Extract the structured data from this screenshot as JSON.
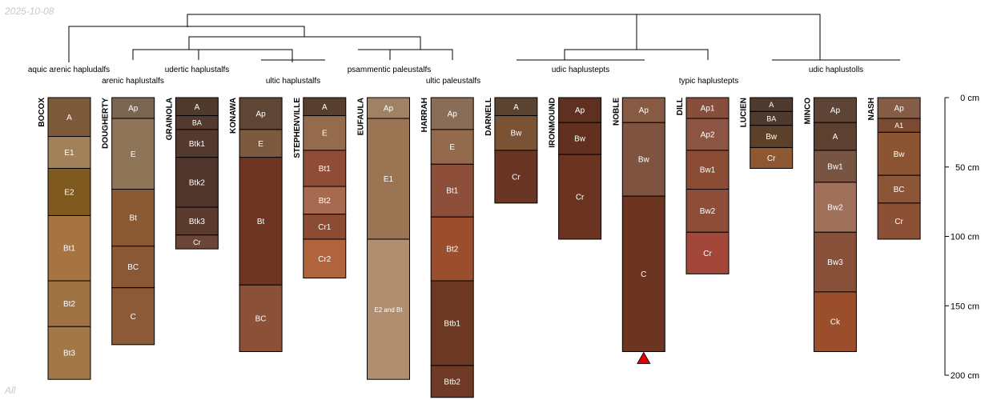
{
  "header": {
    "date": "2025-10-08"
  },
  "footer": {
    "label": "All"
  },
  "scale": {
    "unit": "cm",
    "max_depth": 200,
    "tick_labels": [
      "0 cm",
      "50 cm",
      "100 cm",
      "150 cm",
      "200 cm"
    ]
  },
  "taxa": [
    {
      "key": "t1",
      "label": "aquic arenic hapludalfs"
    },
    {
      "key": "t2",
      "label": "arenic haplustalfs"
    },
    {
      "key": "t3",
      "label": "udertic haplustalfs"
    },
    {
      "key": "t4",
      "label": "ultic haplustalfs"
    },
    {
      "key": "t5",
      "label": "psammentic paleustalfs"
    },
    {
      "key": "t6",
      "label": "ultic paleustalfs"
    },
    {
      "key": "t7",
      "label": "udic haplustepts"
    },
    {
      "key": "t8",
      "label": "typic haplustepts"
    },
    {
      "key": "t9",
      "label": "udic haplustolls"
    }
  ],
  "profiles": [
    {
      "name": "BOCOX",
      "horizons": [
        {
          "name": "A",
          "top": 0,
          "bottom": 28,
          "color": "#7d5a3a"
        },
        {
          "name": "E1",
          "top": 28,
          "bottom": 51,
          "color": "#a2805a"
        },
        {
          "name": "E2",
          "top": 51,
          "bottom": 85,
          "color": "#7f5a1e"
        },
        {
          "name": "Bt1",
          "top": 85,
          "bottom": 132,
          "color": "#a57441"
        },
        {
          "name": "Bt2",
          "top": 132,
          "bottom": 165,
          "color": "#a07345"
        },
        {
          "name": "Bt3",
          "top": 165,
          "bottom": 203,
          "color": "#a37848"
        }
      ]
    },
    {
      "name": "DOUGHERTY",
      "horizons": [
        {
          "name": "Ap",
          "top": 0,
          "bottom": 15,
          "color": "#7a6553"
        },
        {
          "name": "E",
          "top": 15,
          "bottom": 66,
          "color": "#8e7558"
        },
        {
          "name": "Bt",
          "top": 66,
          "bottom": 107,
          "color": "#8b5a32"
        },
        {
          "name": "BC",
          "top": 107,
          "bottom": 137,
          "color": "#8a5835"
        },
        {
          "name": "C",
          "top": 137,
          "bottom": 178,
          "color": "#8c5a36"
        }
      ]
    },
    {
      "name": "GRAINOLA",
      "horizons": [
        {
          "name": "A",
          "top": 0,
          "bottom": 13,
          "color": "#4f3a2e"
        },
        {
          "name": "BA",
          "top": 13,
          "bottom": 23,
          "color": "#54392f"
        },
        {
          "name": "Btk1",
          "top": 23,
          "bottom": 43,
          "color": "#54392f"
        },
        {
          "name": "Btk2",
          "top": 43,
          "bottom": 79,
          "color": "#50352b"
        },
        {
          "name": "Btk3",
          "top": 79,
          "bottom": 99,
          "color": "#5a3b2d"
        },
        {
          "name": "Cr",
          "top": 99,
          "bottom": 109,
          "color": "#6b4636"
        }
      ]
    },
    {
      "name": "KONAWA",
      "horizons": [
        {
          "name": "Ap",
          "top": 0,
          "bottom": 23,
          "color": "#5e4536"
        },
        {
          "name": "E",
          "top": 23,
          "bottom": 43,
          "color": "#7b5a40"
        },
        {
          "name": "Bt",
          "top": 43,
          "bottom": 135,
          "color": "#6e3522"
        },
        {
          "name": "BC",
          "top": 135,
          "bottom": 183,
          "color": "#8a5138"
        }
      ]
    },
    {
      "name": "STEPHENVILLE",
      "horizons": [
        {
          "name": "A",
          "top": 0,
          "bottom": 13,
          "color": "#583e2e"
        },
        {
          "name": "E",
          "top": 13,
          "bottom": 38,
          "color": "#946c4d"
        },
        {
          "name": "Bt1",
          "top": 38,
          "bottom": 64,
          "color": "#8f4c36"
        },
        {
          "name": "Bt2",
          "top": 64,
          "bottom": 84,
          "color": "#a56a4f"
        },
        {
          "name": "Cr1",
          "top": 84,
          "bottom": 102,
          "color": "#8c4b33"
        },
        {
          "name": "Cr2",
          "top": 102,
          "bottom": 130,
          "color": "#b0643d"
        }
      ]
    },
    {
      "name": "EUFAULA",
      "horizons": [
        {
          "name": "Ap",
          "top": 0,
          "bottom": 15,
          "color": "#9f8164"
        },
        {
          "name": "E1",
          "top": 15,
          "bottom": 102,
          "color": "#9b7453"
        },
        {
          "name": "E2 and Bt",
          "top": 102,
          "bottom": 203,
          "color": "#b08e70"
        }
      ]
    },
    {
      "name": "HARRAH",
      "horizons": [
        {
          "name": "Ap",
          "top": 0,
          "bottom": 23,
          "color": "#8a6d57"
        },
        {
          "name": "E",
          "top": 23,
          "bottom": 48,
          "color": "#946a4c"
        },
        {
          "name": "Bt1",
          "top": 48,
          "bottom": 86,
          "color": "#8e4f3a"
        },
        {
          "name": "Bt2",
          "top": 86,
          "bottom": 132,
          "color": "#9a4e2e"
        },
        {
          "name": "Btb1",
          "top": 132,
          "bottom": 193,
          "color": "#6d3822"
        },
        {
          "name": "Btb2",
          "top": 193,
          "bottom": 216,
          "color": "#6e3a25"
        }
      ]
    },
    {
      "name": "DARNELL",
      "horizons": [
        {
          "name": "A",
          "top": 0,
          "bottom": 13,
          "color": "#5a4330"
        },
        {
          "name": "Bw",
          "top": 13,
          "bottom": 38,
          "color": "#7a5234"
        },
        {
          "name": "Cr",
          "top": 38,
          "bottom": 76,
          "color": "#6b3523"
        }
      ]
    },
    {
      "name": "IRONMOUND",
      "horizons": [
        {
          "name": "Ap",
          "top": 0,
          "bottom": 18,
          "color": "#5e3022"
        },
        {
          "name": "Bw",
          "top": 18,
          "bottom": 41,
          "color": "#62301f"
        },
        {
          "name": "Cr",
          "top": 41,
          "bottom": 102,
          "color": "#6a3420"
        }
      ]
    },
    {
      "name": "NOBLE",
      "horizons": [
        {
          "name": "Ap",
          "top": 0,
          "bottom": 18,
          "color": "#875a43"
        },
        {
          "name": "Bw",
          "top": 18,
          "bottom": 71,
          "color": "#7e5440"
        },
        {
          "name": "C",
          "top": 71,
          "bottom": 183,
          "color": "#6c3522"
        }
      ]
    },
    {
      "name": "DILL",
      "horizons": [
        {
          "name": "Ap1",
          "top": 0,
          "bottom": 15,
          "color": "#874e3c"
        },
        {
          "name": "Ap2",
          "top": 15,
          "bottom": 38,
          "color": "#8c5543"
        },
        {
          "name": "Bw1",
          "top": 38,
          "bottom": 66,
          "color": "#8b4c36"
        },
        {
          "name": "Bw2",
          "top": 66,
          "bottom": 97,
          "color": "#8d4d38"
        },
        {
          "name": "Cr",
          "top": 97,
          "bottom": 127,
          "color": "#a2473a"
        }
      ]
    },
    {
      "name": "LUCIEN",
      "horizons": [
        {
          "name": "A",
          "top": 0,
          "bottom": 10,
          "color": "#4e3a2e"
        },
        {
          "name": "BA",
          "top": 10,
          "bottom": 20,
          "color": "#4e3a2e"
        },
        {
          "name": "Bw",
          "top": 20,
          "bottom": 36,
          "color": "#5c4128"
        },
        {
          "name": "Cr",
          "top": 36,
          "bottom": 51,
          "color": "#8e5832"
        }
      ]
    },
    {
      "name": "MINCO",
      "horizons": [
        {
          "name": "Ap",
          "top": 0,
          "bottom": 18,
          "color": "#5e4436"
        },
        {
          "name": "A",
          "top": 18,
          "bottom": 38,
          "color": "#5e4030"
        },
        {
          "name": "Bw1",
          "top": 38,
          "bottom": 61,
          "color": "#785442"
        },
        {
          "name": "Bw2",
          "top": 61,
          "bottom": 97,
          "color": "#a0705a"
        },
        {
          "name": "Bw3",
          "top": 97,
          "bottom": 140,
          "color": "#895039"
        },
        {
          "name": "Ck",
          "top": 140,
          "bottom": 183,
          "color": "#9a4e2c"
        }
      ]
    },
    {
      "name": "NASH",
      "horizons": [
        {
          "name": "Ap",
          "top": 0,
          "bottom": 15,
          "color": "#855c45"
        },
        {
          "name": "A1",
          "top": 15,
          "bottom": 25,
          "color": "#7a4a33"
        },
        {
          "name": "Bw",
          "top": 25,
          "bottom": 56,
          "color": "#8c5432"
        },
        {
          "name": "BC",
          "top": 56,
          "bottom": 76,
          "color": "#8d5538"
        },
        {
          "name": "Cr",
          "top": 76,
          "bottom": 102,
          "color": "#8c5036"
        }
      ]
    }
  ],
  "markers": [
    {
      "profile": "NOBLE",
      "kind": "truncated-depth-triangle",
      "color": "#e00000"
    }
  ]
}
